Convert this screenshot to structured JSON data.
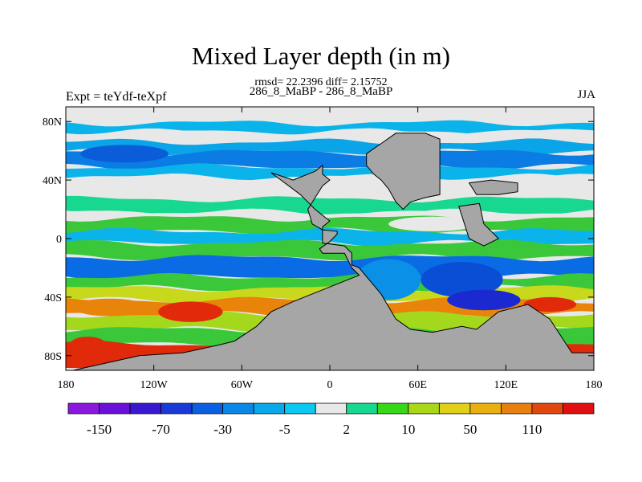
{
  "figure": {
    "title": "Mixed Layer depth (in m)",
    "stats_line": "rmsd= 22.2396 diff= 2.15752",
    "subtitle": "286_8_MaBP - 286_8_MaBP",
    "left_label": "Expt = teYdf-teXpf",
    "right_label": "JJA"
  },
  "map": {
    "lat_ticks": [
      {
        "lat": 80,
        "label": "80N"
      },
      {
        "lat": 40,
        "label": "40N"
      },
      {
        "lat": 0,
        "label": "0"
      },
      {
        "lat": -40,
        "label": "40S"
      },
      {
        "lat": -80,
        "label": "80S"
      }
    ],
    "lon_ticks": [
      {
        "lon": -180,
        "label": "180"
      },
      {
        "lon": -120,
        "label": "120W"
      },
      {
        "lon": -60,
        "label": "60W"
      },
      {
        "lon": 0,
        "label": "0"
      },
      {
        "lon": 60,
        "label": "60E"
      },
      {
        "lon": 120,
        "label": "120E"
      },
      {
        "lon": 180,
        "label": "180"
      }
    ],
    "lat_range": [
      -90,
      90
    ],
    "lon_range": [
      -180,
      180
    ],
    "land_color": "#a6a6a6",
    "bands": [
      {
        "lat": 90,
        "color": "#e8e8e8"
      },
      {
        "lat": 79,
        "color": "#0ab4ea"
      },
      {
        "lat": 73,
        "color": "#e8e8e8"
      },
      {
        "lat": 66,
        "color": "#0aa4e8"
      },
      {
        "lat": 59,
        "color": "#0a7ce4"
      },
      {
        "lat": 49,
        "color": "#0ab4ea"
      },
      {
        "lat": 42,
        "color": "#e8e8e8"
      },
      {
        "lat": 27,
        "color": "#18d890"
      },
      {
        "lat": 18,
        "color": "#e8e8e8"
      },
      {
        "lat": 14,
        "color": "#3ac83a"
      },
      {
        "lat": 5,
        "color": "#0ab4ea"
      },
      {
        "lat": -3,
        "color": "#3ac83a"
      },
      {
        "lat": -13,
        "color": "#0a6ce4"
      },
      {
        "lat": -26,
        "color": "#3ac83a"
      },
      {
        "lat": -34,
        "color": "#c8d81c"
      },
      {
        "lat": -42,
        "color": "#e8840a"
      },
      {
        "lat": -52,
        "color": "#a4d81c"
      },
      {
        "lat": -62,
        "color": "#3ac83a"
      },
      {
        "lat": -72,
        "color": "#e02a0a"
      }
    ],
    "patches": [
      {
        "lon": -150,
        "lat": -47,
        "rx": 25,
        "ry": 6,
        "color": "#e8840a"
      },
      {
        "lon": -95,
        "lat": -50,
        "rx": 22,
        "ry": 7,
        "color": "#e02a0a"
      },
      {
        "lon": -165,
        "lat": -72,
        "rx": 12,
        "ry": 5,
        "color": "#e02a0a"
      },
      {
        "lon": -140,
        "lat": 58,
        "rx": 30,
        "ry": 6,
        "color": "#0a5cd8"
      },
      {
        "lon": 90,
        "lat": -28,
        "rx": 28,
        "ry": 12,
        "color": "#0a4ed6"
      },
      {
        "lon": 105,
        "lat": -42,
        "rx": 25,
        "ry": 7,
        "color": "#1a2ad0"
      },
      {
        "lon": 150,
        "lat": -45,
        "rx": 18,
        "ry": 5,
        "color": "#e02a0a"
      },
      {
        "lon": 40,
        "lat": -28,
        "rx": 22,
        "ry": 14,
        "color": "#0a90e6"
      },
      {
        "lon": 70,
        "lat": 10,
        "rx": 30,
        "ry": 5,
        "color": "#e8e8e8"
      },
      {
        "lon": -30,
        "lat": -68,
        "rx": 15,
        "ry": 5,
        "color": "#0ab4ea"
      },
      {
        "lon": 175,
        "lat": -80,
        "rx": 10,
        "ry": 6,
        "color": "#e02a0a"
      }
    ],
    "land": [
      {
        "name": "americas-africa-landmass",
        "points": [
          [
            -25,
            40
          ],
          [
            -10,
            46
          ],
          [
            -5,
            50
          ],
          [
            -5,
            44
          ],
          [
            0,
            40
          ],
          [
            -5,
            36
          ],
          [
            -10,
            28
          ],
          [
            -15,
            20
          ],
          [
            -12,
            10
          ],
          [
            -5,
            6
          ],
          [
            5,
            5
          ],
          [
            5,
            3
          ],
          [
            0,
            -2
          ],
          [
            -7,
            -7
          ],
          [
            -5,
            -10
          ],
          [
            10,
            -10
          ],
          [
            15,
            -20
          ],
          [
            20,
            -25
          ],
          [
            -5,
            -35
          ],
          [
            -25,
            -43
          ],
          [
            -40,
            -50
          ],
          [
            -50,
            -60
          ],
          [
            -65,
            -70
          ],
          [
            -77,
            -73
          ],
          [
            -100,
            -78
          ],
          [
            -130,
            -80
          ],
          [
            -175,
            -90
          ],
          [
            180,
            -90
          ],
          [
            180,
            -78
          ],
          [
            165,
            -78
          ],
          [
            150,
            -55
          ],
          [
            135,
            -45
          ],
          [
            115,
            -50
          ],
          [
            100,
            -62
          ],
          [
            90,
            -60
          ],
          [
            70,
            -64
          ],
          [
            55,
            -62
          ],
          [
            45,
            -55
          ],
          [
            35,
            -38
          ],
          [
            20,
            -20
          ],
          [
            15,
            -18
          ],
          [
            15,
            -10
          ],
          [
            10,
            -5
          ],
          [
            -5,
            -3
          ],
          [
            -5,
            8
          ],
          [
            0,
            12
          ],
          [
            -10,
            20
          ],
          [
            -20,
            30
          ],
          [
            -40,
            45
          ],
          [
            -25,
            40
          ]
        ]
      },
      {
        "name": "eurasia-north-block",
        "points": [
          [
            35,
            65
          ],
          [
            45,
            72
          ],
          [
            65,
            72
          ],
          [
            75,
            68
          ],
          [
            75,
            30
          ],
          [
            65,
            28
          ],
          [
            55,
            25
          ],
          [
            50,
            20
          ],
          [
            45,
            25
          ],
          [
            40,
            34
          ],
          [
            35,
            40
          ],
          [
            30,
            44
          ],
          [
            25,
            50
          ],
          [
            25,
            58
          ],
          [
            35,
            65
          ]
        ]
      },
      {
        "name": "asia-east-block",
        "points": [
          [
            95,
            38
          ],
          [
            110,
            40
          ],
          [
            128,
            38
          ],
          [
            128,
            32
          ],
          [
            115,
            30
          ],
          [
            100,
            30
          ],
          [
            95,
            38
          ]
        ]
      },
      {
        "name": "maritime-continent",
        "points": [
          [
            88,
            22
          ],
          [
            102,
            24
          ],
          [
            105,
            10
          ],
          [
            115,
            0
          ],
          [
            105,
            -5
          ],
          [
            95,
            0
          ],
          [
            88,
            22
          ]
        ]
      }
    ]
  },
  "colorbar": {
    "colors": [
      "#8c18e0",
      "#6a10d8",
      "#3a18d0",
      "#1a3ad8",
      "#0a60e0",
      "#0a88e6",
      "#0aa8ea",
      "#0ac8f0",
      "#e8e8e8",
      "#18d890",
      "#38d818",
      "#a8d818",
      "#e0d018",
      "#e8b010",
      "#e88010",
      "#e04810",
      "#e01010"
    ],
    "labels": [
      "-150",
      "-70",
      "-30",
      "-5",
      "2",
      "10",
      "50",
      "110"
    ]
  }
}
